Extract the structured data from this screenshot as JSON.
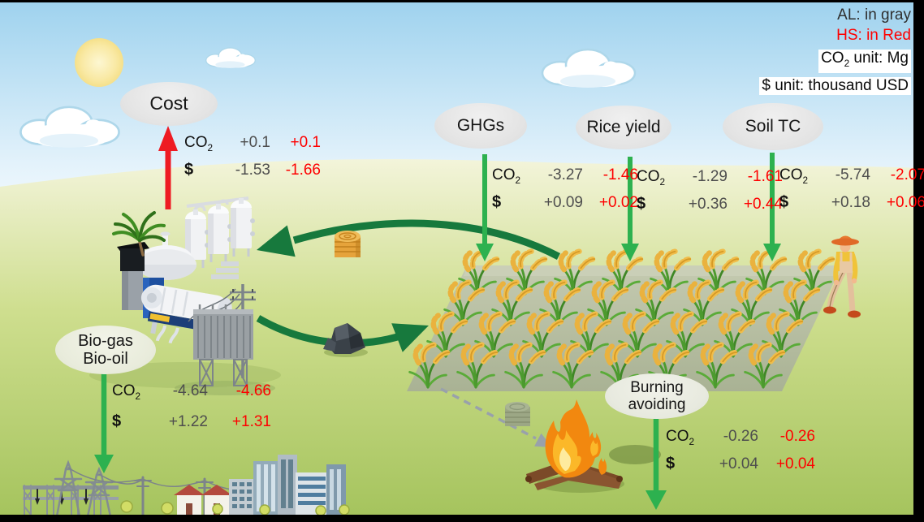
{
  "legend": {
    "al": "AL: in gray",
    "hs": "HS: in Red",
    "co2": "CO",
    "co2_sub": "2",
    "co2_unit_suffix": " unit: Mg",
    "usd_unit": "$ unit: thousand USD"
  },
  "labels": {
    "co2": "CO",
    "co2_sub": "2",
    "usd": "$"
  },
  "nodes": {
    "cost": {
      "label": "Cost",
      "co2_al": "+0.1",
      "co2_hs": "+0.1",
      "usd_al": "-1.53",
      "usd_hs": "-1.66"
    },
    "ghgs": {
      "label": "GHGs",
      "co2_al": "-3.27",
      "co2_hs": "-1.46",
      "usd_al": "+0.09",
      "usd_hs": "+0.02"
    },
    "rice_yield": {
      "label": "Rice yield",
      "co2_al": "-1.29",
      "co2_hs": "-1.61",
      "usd_al": "+0.36",
      "usd_hs": "+0.44"
    },
    "soil_tc": {
      "label": "Soil TC",
      "co2_al": "-5.74",
      "co2_hs": "-2.07",
      "usd_al": "+0.18",
      "usd_hs": "+0.06"
    },
    "bio": {
      "label_line1": "Bio-gas",
      "label_line2": "Bio-oil",
      "co2_al": "-4.64",
      "co2_hs": "-4.66",
      "usd_al": "+1.22",
      "usd_hs": "+1.31"
    },
    "burning": {
      "label_line1": "Burning",
      "label_line2": "avoiding",
      "co2_al": "-0.26",
      "co2_hs": "-0.26",
      "usd_al": "+0.04",
      "usd_hs": "+0.04"
    }
  },
  "colors": {
    "al_gray": "#4e4e4e",
    "hs_red": "#fe0000",
    "arrow_green": "#2db14f",
    "arrow_dark_green": "#17793d",
    "arrow_red": "#ee1b23",
    "bubble_gray": "#e2e2e2"
  },
  "scene": {
    "icons": [
      "sun-icon",
      "cloud-icon",
      "straw-bale-icon",
      "biochar-icon",
      "rice-field",
      "farmer-illustration",
      "biorefinery-illustration",
      "transformer-illustration",
      "power-grid-city-illustration",
      "fire-illustration",
      "faded-straw-bale-icon"
    ]
  }
}
